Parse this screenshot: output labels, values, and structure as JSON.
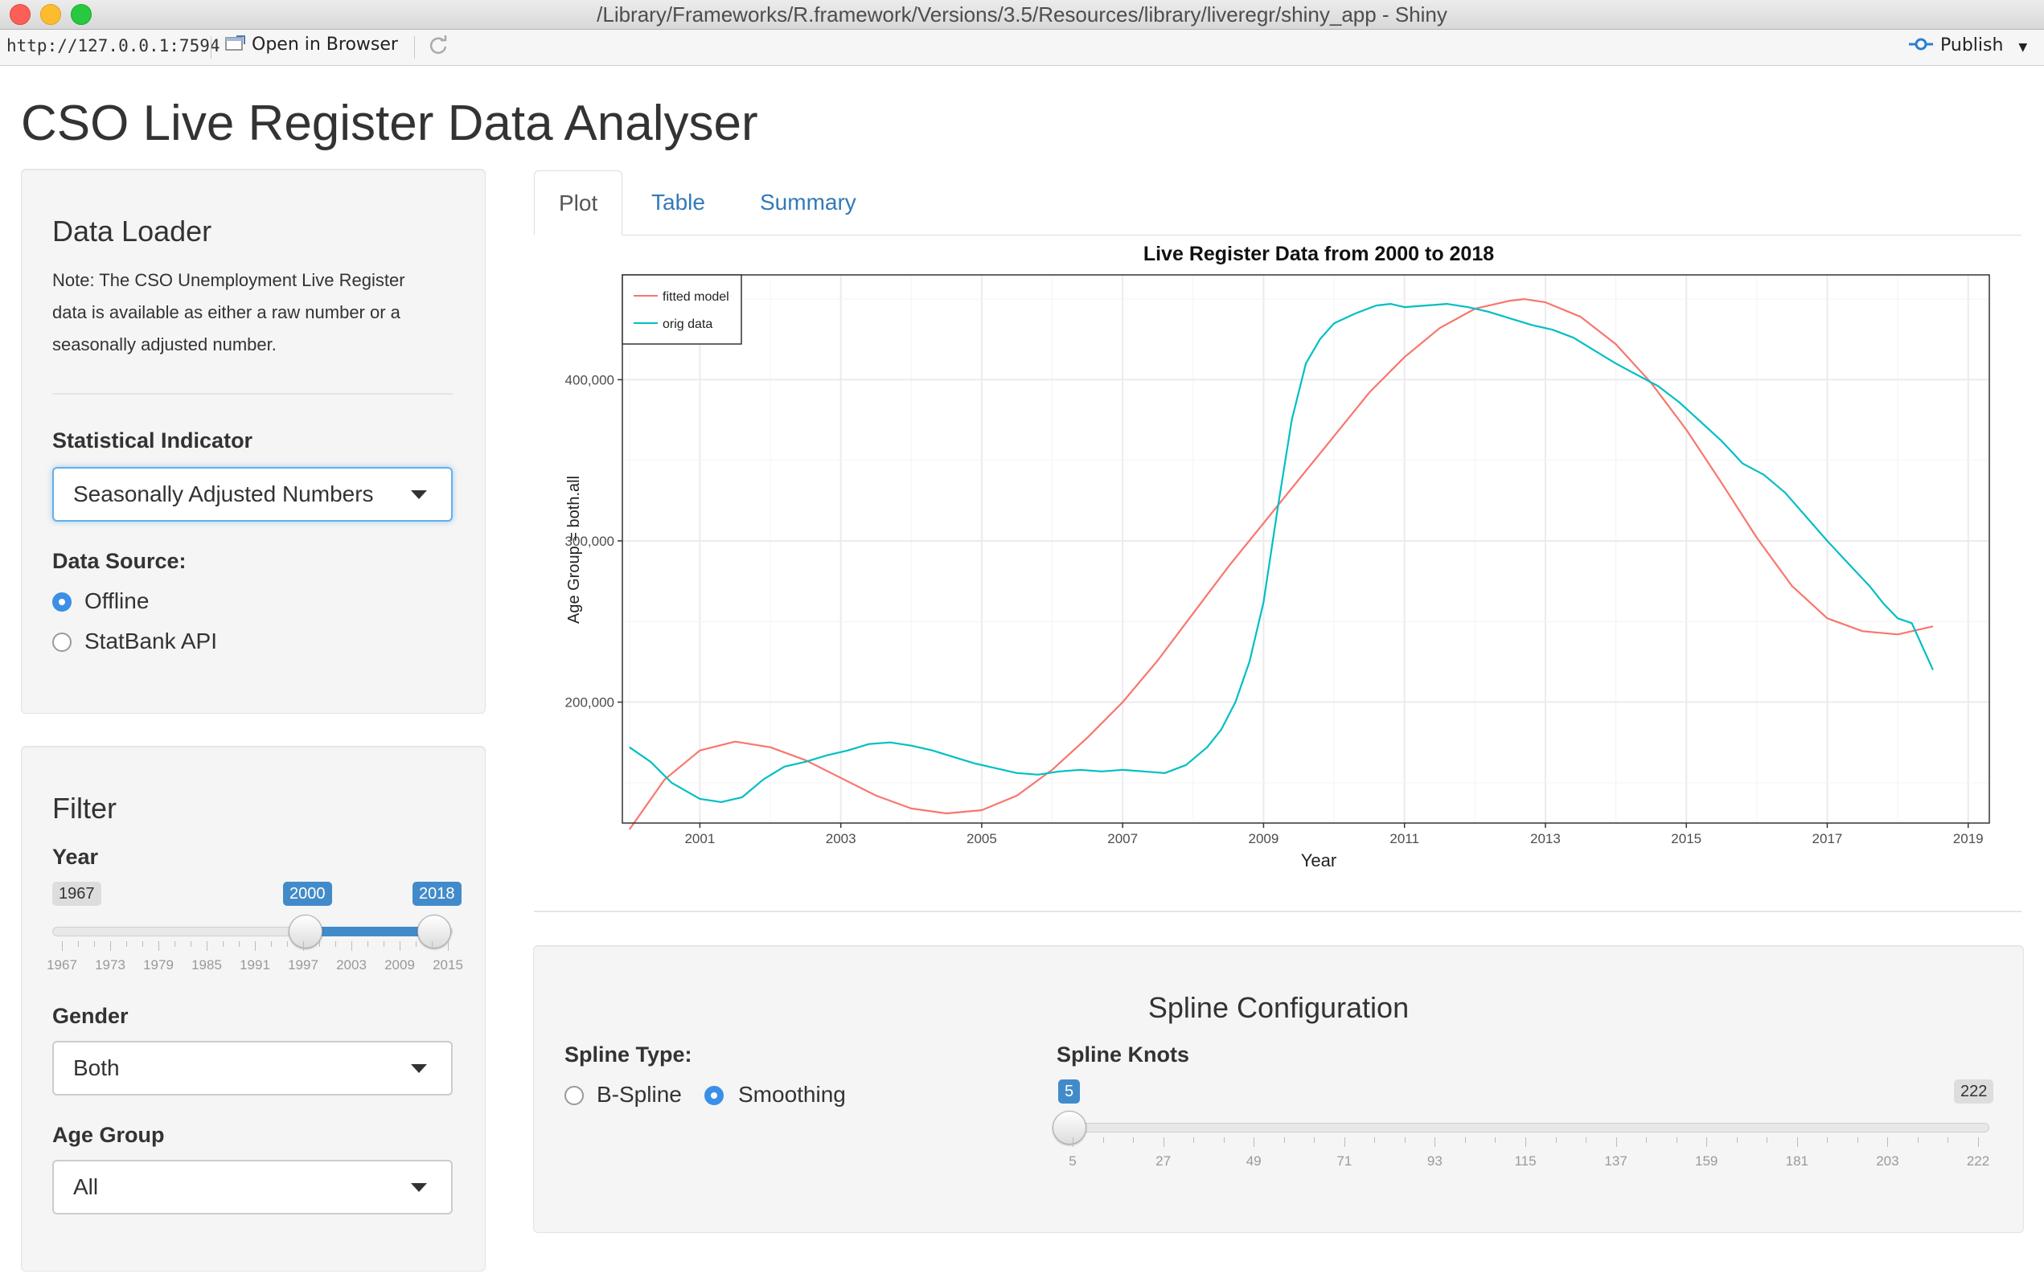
{
  "window": {
    "title": "/Library/Frameworks/R.framework/Versions/3.5/Resources/library/liveregr/shiny_app - Shiny",
    "url": "http://127.0.0.1:7594",
    "open_in_browser": "Open in Browser",
    "publish": "Publish"
  },
  "page_title": "CSO Live Register Data Analyser",
  "data_loader": {
    "title": "Data Loader",
    "note_lines": [
      "Note: The CSO Unemployment Live Register",
      "data is available as either a raw number or a",
      "seasonally adjusted number."
    ],
    "indicator_label": "Statistical Indicator",
    "indicator_value": "Seasonally Adjusted Numbers",
    "source_label": "Data Source:",
    "source_options": [
      "Offline",
      "StatBank API"
    ],
    "source_selected": "Offline"
  },
  "filter": {
    "title": "Filter",
    "year_label": "Year",
    "year_min": "1967",
    "year_from": "2000",
    "year_to": "2018",
    "year_ticks": [
      "1967",
      "1973",
      "1979",
      "1985",
      "1991",
      "1997",
      "2003",
      "2009",
      "2015"
    ],
    "gender_label": "Gender",
    "gender_value": "Both",
    "age_label": "Age Group",
    "age_value": "All"
  },
  "tabs": [
    "Plot",
    "Table",
    "Summary"
  ],
  "active_tab": "Plot",
  "spline": {
    "title": "Spline Configuration",
    "type_label": "Spline Type:",
    "type_options": [
      "B-Spline",
      "Smoothing"
    ],
    "type_selected": "Smoothing",
    "knots_label": "Spline Knots",
    "knots_value": "5",
    "knots_max": "222",
    "knots_ticks": [
      "5",
      "27",
      "49",
      "71",
      "93",
      "115",
      "137",
      "159",
      "181",
      "203",
      "222"
    ]
  },
  "colors": {
    "fitted": "#f8766d",
    "orig": "#00bfc4",
    "accent": "#428bca"
  },
  "chart_data": {
    "type": "line",
    "title": "Live Register Data from 2000 to 2018",
    "xlabel": "Year",
    "ylabel": "Age Group = both.all",
    "xlim": [
      1999.9,
      2019.3
    ],
    "ylim": [
      125000,
      465000
    ],
    "x_ticks": [
      "2001",
      "2003",
      "2005",
      "2007",
      "2009",
      "2011",
      "2013",
      "2015",
      "2017",
      "2019"
    ],
    "y_ticks": [
      "200,000",
      "300,000",
      "400,000"
    ],
    "legend_position": "top-left",
    "grid": true,
    "series": [
      {
        "name": "fitted model",
        "x": [
          2000.0,
          2000.5,
          2001.0,
          2001.5,
          2002.0,
          2002.5,
          2003.0,
          2003.5,
          2004.0,
          2004.5,
          2005.0,
          2005.5,
          2006.0,
          2006.5,
          2007.0,
          2007.5,
          2008.0,
          2008.5,
          2009.0,
          2009.5,
          2010.0,
          2010.5,
          2011.0,
          2011.5,
          2012.0,
          2012.5,
          2012.7,
          2013.0,
          2013.5,
          2014.0,
          2014.5,
          2015.0,
          2015.5,
          2016.0,
          2016.5,
          2017.0,
          2017.5,
          2018.0,
          2018.5
        ],
        "y": [
          121000,
          152000,
          170000,
          175500,
          172000,
          164000,
          153000,
          142000,
          134000,
          131000,
          133000,
          142000,
          158000,
          178000,
          200000,
          226000,
          255000,
          284000,
          311000,
          338000,
          365000,
          392000,
          414000,
          432000,
          444000,
          449000,
          450000,
          448000,
          439000,
          422000,
          398000,
          369000,
          336000,
          302000,
          272000,
          252000,
          244000,
          242000,
          247000
        ]
      },
      {
        "name": "orig data",
        "x": [
          2000.0,
          2000.3,
          2000.6,
          2001.0,
          2001.3,
          2001.6,
          2001.9,
          2002.2,
          2002.5,
          2002.8,
          2003.1,
          2003.4,
          2003.7,
          2004.0,
          2004.3,
          2004.6,
          2004.9,
          2005.2,
          2005.5,
          2005.8,
          2006.1,
          2006.4,
          2006.7,
          2007.0,
          2007.3,
          2007.6,
          2007.9,
          2008.2,
          2008.4,
          2008.6,
          2008.8,
          2009.0,
          2009.2,
          2009.4,
          2009.6,
          2009.8,
          2010.0,
          2010.3,
          2010.6,
          2010.8,
          2011.0,
          2011.3,
          2011.6,
          2011.9,
          2012.2,
          2012.5,
          2012.8,
          2013.1,
          2013.4,
          2013.7,
          2014.0,
          2014.3,
          2014.6,
          2014.9,
          2015.2,
          2015.5,
          2015.8,
          2016.1,
          2016.4,
          2016.7,
          2017.0,
          2017.3,
          2017.6,
          2017.8,
          2018.0,
          2018.2,
          2018.5
        ],
        "y": [
          172000,
          163000,
          150000,
          140000,
          138000,
          141000,
          152000,
          160000,
          163000,
          167000,
          170000,
          174000,
          175000,
          173000,
          170000,
          166000,
          162000,
          159000,
          156000,
          155000,
          157000,
          158000,
          157000,
          158000,
          157000,
          156000,
          161000,
          172000,
          183000,
          200000,
          225000,
          262000,
          320000,
          375000,
          410000,
          425000,
          435000,
          441000,
          446000,
          447000,
          445000,
          446000,
          447000,
          445000,
          442000,
          438000,
          434000,
          431000,
          426000,
          418000,
          410000,
          403000,
          396000,
          386000,
          374000,
          362000,
          348000,
          341000,
          330000,
          315000,
          300000,
          286000,
          272000,
          261000,
          252000,
          249000,
          220000
        ]
      }
    ]
  }
}
